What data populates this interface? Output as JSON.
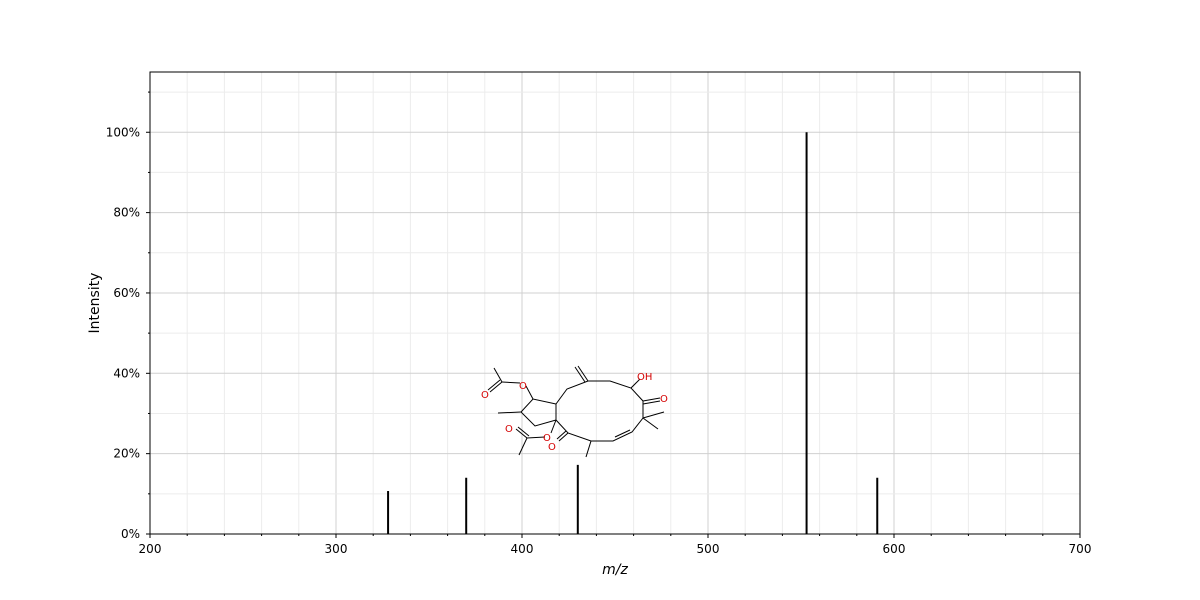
{
  "chart_data": {
    "type": "bar",
    "xlabel": "m/z",
    "ylabel": "Intensity",
    "xlim": [
      200,
      700
    ],
    "ylim": [
      0,
      115
    ],
    "grid": true,
    "x_ticks": [
      {
        "value": 200,
        "label": "200"
      },
      {
        "value": 300,
        "label": "300"
      },
      {
        "value": 400,
        "label": "400"
      },
      {
        "value": 500,
        "label": "500"
      },
      {
        "value": 600,
        "label": "600"
      },
      {
        "value": 700,
        "label": "700"
      }
    ],
    "y_ticks": [
      {
        "value": 0,
        "label": "0%"
      },
      {
        "value": 20,
        "label": "20%"
      },
      {
        "value": 40,
        "label": "40%"
      },
      {
        "value": 60,
        "label": "60%"
      },
      {
        "value": 80,
        "label": "80%"
      },
      {
        "value": 100,
        "label": "100%"
      }
    ],
    "peaks": [
      {
        "mz": 328,
        "intensity": 10.7
      },
      {
        "mz": 370,
        "intensity": 14.0
      },
      {
        "mz": 430,
        "intensity": 17.2
      },
      {
        "mz": 553,
        "intensity": 100.0
      },
      {
        "mz": 591,
        "intensity": 14.0
      }
    ],
    "bar_color": "#000000",
    "structure_atom_color": "#d40000",
    "structure_atoms": [
      "O",
      "O",
      "O",
      "O",
      "O",
      "OH",
      "O"
    ]
  }
}
